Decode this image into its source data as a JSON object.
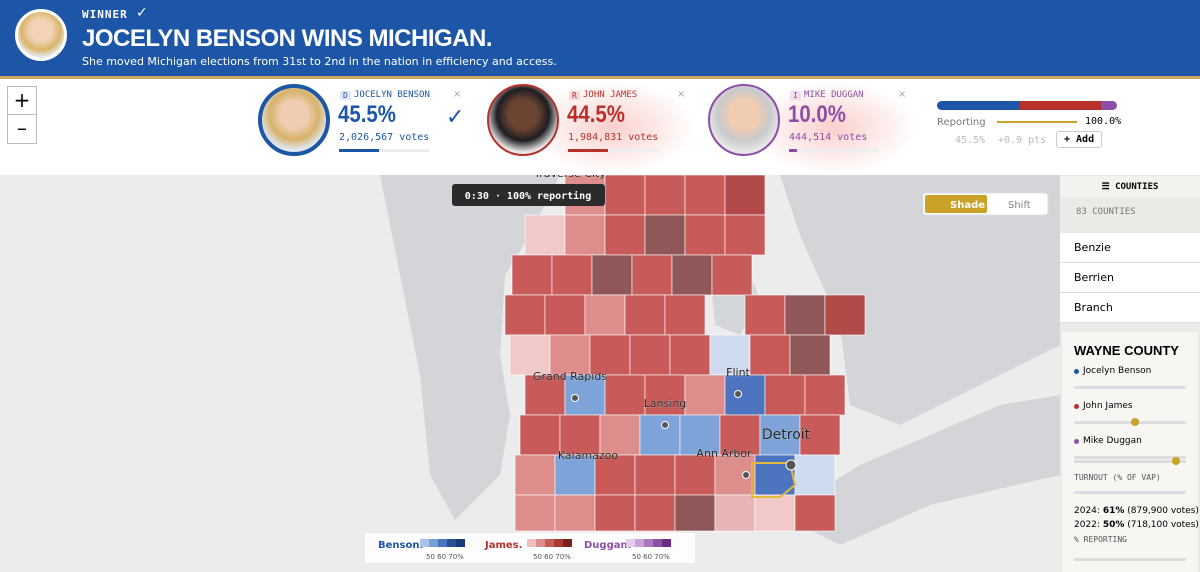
{
  "header": {
    "label": "WINNER",
    "title": "JOCELYN BENSON WINS MICHIGAN.",
    "subtitle": "She moved Michigan elections from 31st to 2nd in the nation in efficiency and access."
  },
  "zoom": {
    "in": "+",
    "out": "–"
  },
  "candidates": [
    {
      "party": "D",
      "name": "JOCELYN BENSON",
      "pct": "45.5%",
      "votes": "2,026,567 votes"
    },
    {
      "party": "R",
      "name": "JOHN JAMES",
      "pct": "44.5%",
      "votes": "1,984,831 votes"
    },
    {
      "party": "I",
      "name": "MIKE DUGGAN",
      "pct": "10.0%",
      "votes": "444,514 votes"
    }
  ],
  "summary": {
    "reporting_label": "Reporting",
    "reporting_pct": "100.0%",
    "lead": "45.5%",
    "shift": "+0.9 pts",
    "add": "+ Add"
  },
  "map": {
    "timer": "0:30 · 100% reporting",
    "modes": [
      "Shade",
      "Shift"
    ],
    "cities": [
      "Traverse City",
      "Grand Rapids",
      "Lansing",
      "Flint",
      "Detroit",
      "Kalamazoo",
      "Ann Arbor"
    ],
    "legend": [
      {
        "name": "Benson.",
        "scale": "50 60 70%"
      },
      {
        "name": "James.",
        "scale": "50 60 70%"
      },
      {
        "name": "Duggan.",
        "scale": "50 60 70%"
      }
    ]
  },
  "sidebar": {
    "title": "COUNTIES",
    "count": "83 COUNTIES",
    "counties": [
      "Benzie",
      "Berrien",
      "Branch"
    ],
    "county_title": "WAYNE COUNTY",
    "candidates": [
      "Jocelyn Benson",
      "John James",
      "Mike Duggan"
    ],
    "turnout_label": "TURNOUT (% OF VAP)",
    "turnout": [
      {
        "year": "2024:",
        "pct": "61%",
        "votes": "(879,900 votes)"
      },
      {
        "year": "2022:",
        "pct": "50%",
        "votes": "(718,100 votes)"
      }
    ],
    "reporting_label": "% REPORTING"
  }
}
